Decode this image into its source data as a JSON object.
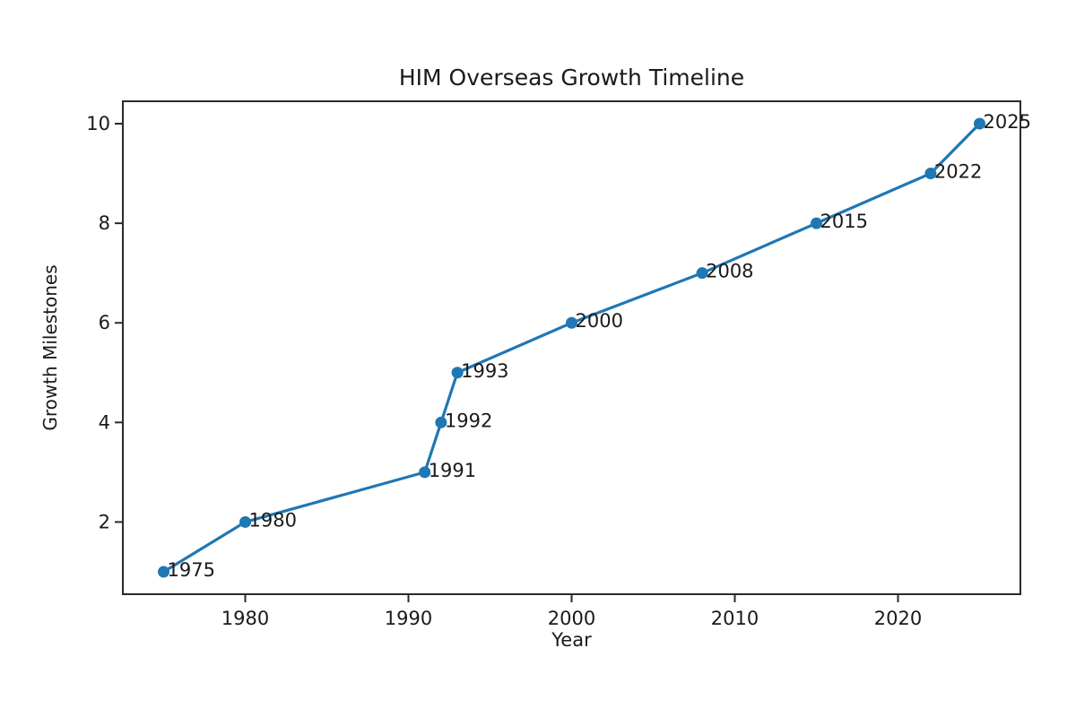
{
  "chart_data": {
    "type": "line",
    "title": "HIM Overseas Growth Timeline",
    "xlabel": "Year",
    "ylabel": "Growth Milestones",
    "series": [
      {
        "name": "Growth milestones",
        "x": [
          1975,
          1980,
          1991,
          1992,
          1993,
          2000,
          2008,
          2015,
          2022,
          2025
        ],
        "y": [
          1,
          2,
          3,
          4,
          5,
          6,
          7,
          8,
          9,
          10
        ],
        "point_labels": [
          "1975",
          "1980",
          "1991",
          "1992",
          "1993",
          "2000",
          "2008",
          "2015",
          "2022",
          "2025"
        ],
        "color": "#1f77b4"
      }
    ],
    "xlim": [
      1972.5,
      2027.5
    ],
    "ylim": [
      0.55,
      10.45
    ],
    "xticks": [
      1980,
      1990,
      2000,
      2010,
      2020
    ],
    "yticks": [
      2,
      4,
      6,
      8,
      10
    ],
    "grid": false,
    "legend": "none",
    "marker": "circle",
    "line_width": 3.2,
    "marker_radius": 6.5,
    "text_color": "#1a1a1a",
    "spine_color": "#2a2a2a",
    "background_color": "#ffffff"
  }
}
